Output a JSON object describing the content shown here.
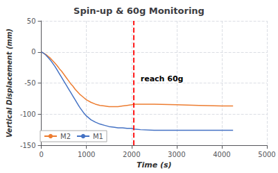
{
  "chart_data": {
    "type": "line",
    "title": "Spin-up & 60g Monitoring",
    "xlabel": "Time (s)",
    "ylabel": "Vertical Displacement (mm)",
    "x": [
      0,
      50,
      100,
      150,
      200,
      250,
      300,
      350,
      400,
      450,
      500,
      550,
      600,
      650,
      700,
      750,
      800,
      850,
      900,
      950,
      1000,
      1100,
      1200,
      1300,
      1400,
      1500,
      1600,
      1700,
      1800,
      1900,
      2000,
      2050,
      2200,
      2500,
      3000,
      3500,
      4000,
      4250
    ],
    "series": [
      {
        "name": "M2",
        "color": "#ed7d31",
        "values": [
          0,
          -2,
          -4,
          -7,
          -10,
          -14,
          -18,
          -22,
          -27,
          -31,
          -36,
          -41,
          -46,
          -51,
          -55,
          -60,
          -64,
          -68,
          -71,
          -74,
          -77,
          -81,
          -84,
          -86,
          -87,
          -88,
          -88,
          -88,
          -87,
          -86,
          -85,
          -84,
          -84,
          -84,
          -85,
          -86,
          -87,
          -87
        ]
      },
      {
        "name": "M1",
        "color": "#4472c4",
        "values": [
          0,
          -2,
          -5,
          -9,
          -13,
          -18,
          -23,
          -29,
          -35,
          -41,
          -47,
          -53,
          -59,
          -65,
          -71,
          -77,
          -83,
          -89,
          -94,
          -99,
          -103,
          -109,
          -113,
          -116,
          -118,
          -120,
          -121,
          -122,
          -122,
          -123,
          -123,
          -124,
          -125,
          -126,
          -126,
          -126,
          -126,
          -126
        ]
      }
    ],
    "vlines": [
      {
        "x": 2050,
        "color": "#ff0000",
        "line_style": "dashed"
      }
    ],
    "annotations": [
      {
        "text": "reach 60g",
        "x": 2200,
        "y": -43
      }
    ],
    "xlim": [
      0,
      5000
    ],
    "ylim": [
      -150,
      50
    ],
    "xticks": [
      0,
      1000,
      2000,
      3000,
      4000,
      5000
    ],
    "yticks": [
      -150,
      -100,
      -50,
      0,
      50
    ],
    "grid": true,
    "legend": "lower left"
  }
}
